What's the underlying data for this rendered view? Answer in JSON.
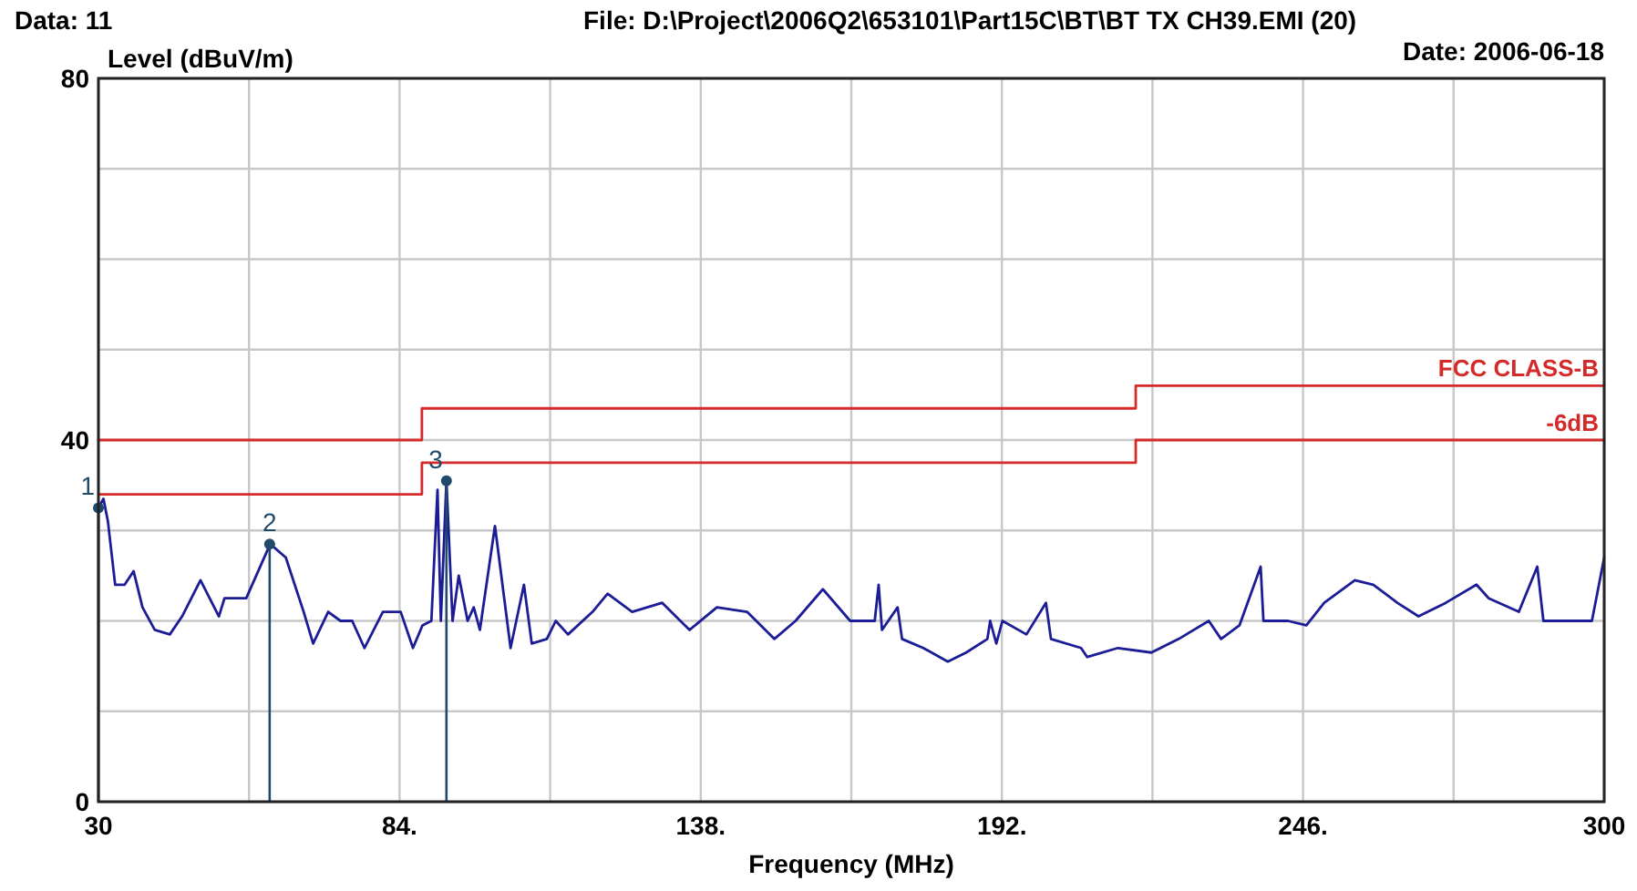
{
  "chart_data": {
    "type": "line",
    "ylabel": "Level (dBuV/m)",
    "xlabel": "Frequency (MHz)",
    "annotations": [
      "Data: 11",
      "File: D:\\Project\\2006Q2\\653101\\Part15C\\BT\\BT TX CH39.EMI  (20)",
      "Date: 2006-06-18",
      {
        "text": "1",
        "x": 30,
        "y": 32.5
      },
      {
        "text": "2",
        "x": 60.7,
        "y": 28.5
      },
      {
        "text": "3",
        "x": 92.4,
        "y": 35.5
      }
    ],
    "xlim": [
      30,
      300
    ],
    "ylim": [
      0,
      80
    ],
    "xticks": [
      30,
      {
        "value": 57,
        "label": null
      },
      {
        "value": 84,
        "label": "84."
      },
      {
        "value": 111,
        "label": null
      },
      {
        "value": 138,
        "label": "138."
      },
      {
        "value": 165,
        "label": null
      },
      {
        "value": 192,
        "label": "192."
      },
      {
        "value": 219,
        "label": null
      },
      {
        "value": 246,
        "label": "246."
      },
      {
        "value": 273,
        "label": null
      },
      300
    ],
    "yticks": [
      0,
      {
        "value": 10,
        "label": null
      },
      {
        "value": 20,
        "label": null
      },
      {
        "value": 30,
        "label": null
      },
      40,
      {
        "value": 50,
        "label": null
      },
      {
        "value": 60,
        "label": null
      },
      {
        "value": 70,
        "label": null
      },
      80
    ],
    "grid": true,
    "legend": false,
    "marker": "none",
    "line_style": "solid",
    "series": [
      {
        "color": "#1c1c96",
        "x": [
          30,
          30.9,
          31.7,
          33,
          34.7,
          36.3,
          37.9,
          40.1,
          42.8,
          45,
          48.3,
          51.6,
          52.6,
          56.5,
          60.8,
          63.6,
          66.8,
          68.5,
          71.2,
          73.4,
          75.5,
          77.7,
          81,
          84.2,
          86.4,
          88.1,
          89.7,
          90.8,
          91.4,
          92.4,
          93.5,
          94.6,
          96.2,
          97.3,
          98.4,
          101.1,
          103.9,
          106.3,
          107.7,
          110.4,
          112,
          114.2,
          118.6,
          121.3,
          125.7,
          131.1,
          136,
          140.9,
          146.3,
          151.2,
          155,
          159.9,
          164.8,
          169.2,
          169.9,
          170.5,
          173.3,
          174.1,
          177.9,
          182.3,
          185.6,
          189.4,
          189.9,
          191,
          192.1,
          196.4,
          199.9,
          200.8,
          206.2,
          207.3,
          212.8,
          218.8,
          223.7,
          229.1,
          231.3,
          234.6,
          238.4,
          238.9,
          243.3,
          246.6,
          249.8,
          255.3,
          258.6,
          262.9,
          266.7,
          271.6,
          277.1,
          279.3,
          284.7,
          288,
          289.1,
          294.5,
          297.8,
          300
        ],
        "values": [
          32.5,
          33.5,
          31,
          24,
          24,
          25.5,
          21.5,
          19,
          18.5,
          20.5,
          24.5,
          20.5,
          22.5,
          22.5,
          28.5,
          27,
          21,
          17.5,
          21,
          20,
          20,
          17,
          21,
          21,
          17,
          19.5,
          20,
          34.5,
          20,
          35.5,
          20,
          25,
          20,
          21.5,
          19,
          30.5,
          17,
          24,
          17.5,
          18,
          20,
          18.5,
          21,
          23,
          21,
          22,
          19,
          21.5,
          21,
          18,
          20,
          23.5,
          20,
          20,
          24,
          19,
          21.5,
          18,
          17,
          15.5,
          16.5,
          18,
          20,
          17.5,
          20,
          18.5,
          22,
          18,
          17,
          16,
          17,
          16.5,
          18,
          20,
          18,
          19.5,
          26,
          20,
          20,
          19.5,
          22,
          24.5,
          24,
          22,
          20.5,
          22,
          24,
          22.5,
          21,
          26,
          20,
          20,
          20,
          27
        ]
      },
      {
        "type": "line",
        "name": "FCC CLASS-B",
        "color": "#d42a2a",
        "x": [
          30,
          88,
          88,
          216,
          216,
          300
        ],
        "values": [
          40,
          40,
          43.5,
          43.5,
          46,
          46
        ]
      },
      {
        "type": "line",
        "name": "-6dB",
        "color": "#d42a2a",
        "x": [
          30,
          88,
          88,
          216,
          216,
          300
        ],
        "values": [
          34,
          34,
          37.5,
          37.5,
          40,
          40
        ]
      },
      {
        "type": "lollipop",
        "color": "#1f4a6a",
        "x": [
          30,
          60.7,
          92.4
        ],
        "values": [
          32.5,
          28.5,
          35.5
        ],
        "marker": "circle"
      }
    ]
  }
}
